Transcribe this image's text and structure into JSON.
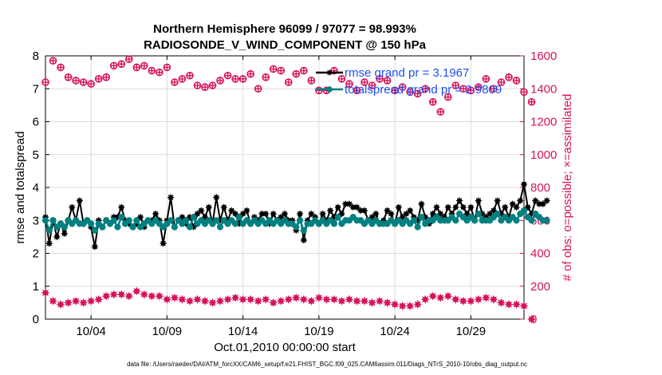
{
  "chart_data": {
    "type": "line",
    "title": "Northern Hemisphere 96099 / 97077 = 98.993%",
    "subtitle": "RADIOSONDE_V_WIND_COMPONENT @ 150 hPa",
    "xlabel": "Oct.01,2010 00:00:00 start",
    "ylabel_left": "rmse and totalspread",
    "ylabel_right": "# of obs: o=possible; ×=assimilated",
    "footnote": "data file: /Users/raeder/DAI/ATM_forcXX/CAM6_setup/f.e21.FHIST_BGC.f09_025.CAM6assim.011/Diags_NTrS_2010-10/obs_diag_output.nc",
    "xlim": [
      1,
      32.5
    ],
    "ylim_left": [
      0,
      8
    ],
    "ylim_right": [
      0,
      1600
    ],
    "x_tick_values": [
      4,
      9,
      14,
      19,
      24,
      29
    ],
    "x_tick_labels": [
      "10/04",
      "10/09",
      "10/14",
      "10/19",
      "10/24",
      "10/29"
    ],
    "y_left_ticks": [
      "0",
      "1",
      "2",
      "3",
      "4",
      "5",
      "6",
      "7",
      "8"
    ],
    "y_right_ticks": [
      "0",
      "200",
      "400",
      "600",
      "800",
      "1000",
      "1200",
      "1400",
      "1600"
    ],
    "grid": true,
    "legend": [
      {
        "label": "rmse grand pr = 3.1967",
        "color": "#000000"
      },
      {
        "label": "totalspread grand pr = 2.9809",
        "color": "#008080"
      }
    ],
    "x_start": 1,
    "x_step": 0.25,
    "series": [
      {
        "name": "rmse",
        "axis": "left",
        "color": "#000000",
        "values": [
          3.1,
          2.3,
          3.0,
          2.5,
          2.9,
          2.6,
          3.0,
          3.4,
          3.0,
          3.6,
          2.9,
          3.0,
          2.8,
          2.2,
          3.0,
          2.8,
          3.0,
          2.9,
          3.1,
          3.1,
          3.4,
          3.0,
          2.9,
          2.8,
          2.9,
          3.1,
          2.8,
          3.0,
          3.0,
          3.2,
          3.0,
          2.3,
          3.0,
          3.7,
          2.8,
          3.0,
          3.1,
          2.9,
          3.1,
          2.8,
          3.2,
          3.3,
          3.1,
          3.4,
          2.9,
          3.7,
          3.0,
          3.4,
          3.0,
          3.3,
          3.2,
          2.9,
          3.2,
          3.3,
          2.9,
          3.1,
          3.0,
          3.2,
          3.2,
          2.9,
          3.2,
          3.0,
          3.1,
          3.2,
          3.0,
          3.0,
          2.7,
          3.2,
          2.4,
          3.0,
          3.2,
          3.1,
          2.9,
          3.2,
          3.0,
          3.3,
          3.1,
          3.4,
          3.2,
          3.5,
          3.5,
          3.4,
          3.4,
          3.3,
          3.3,
          3.0,
          3.1,
          3.2,
          2.9,
          3.0,
          3.3,
          3.2,
          2.9,
          3.4,
          3.1,
          3.2,
          3.3,
          3.1,
          3.0,
          3.5,
          3.1,
          2.9,
          3.2,
          3.4,
          3.2,
          3.1,
          3.4,
          3.2,
          3.4,
          3.6,
          3.4,
          3.2,
          3.4,
          3.0,
          3.6,
          3.2,
          3.1,
          3.2,
          3.3,
          3.6,
          3.2,
          3.4,
          3.1,
          3.5,
          3.4,
          3.6,
          4.1,
          3.4,
          3.2,
          3.6,
          3.5,
          3.5,
          3.6
        ]
      },
      {
        "name": "totalspread",
        "axis": "left",
        "color": "#008080",
        "values": [
          3.0,
          2.7,
          3.0,
          2.8,
          2.9,
          2.8,
          3.0,
          2.9,
          3.0,
          2.9,
          2.9,
          3.0,
          2.9,
          2.7,
          2.9,
          2.8,
          3.0,
          2.9,
          3.0,
          2.8,
          3.1,
          2.9,
          3.0,
          2.8,
          3.0,
          2.8,
          2.9,
          3.0,
          2.9,
          3.0,
          2.9,
          2.8,
          2.9,
          3.0,
          2.8,
          3.0,
          2.9,
          3.0,
          2.8,
          3.1,
          2.9,
          3.0,
          2.9,
          3.0,
          2.9,
          3.0,
          2.8,
          3.0,
          2.9,
          3.0,
          2.9,
          3.1,
          2.9,
          3.0,
          2.9,
          3.0,
          2.9,
          3.0,
          2.9,
          3.0,
          2.9,
          3.0,
          2.9,
          3.0,
          2.9,
          2.9,
          2.8,
          3.0,
          2.7,
          2.9,
          2.9,
          3.0,
          2.9,
          3.0,
          2.9,
          3.0,
          2.9,
          3.1,
          2.9,
          3.0,
          3.0,
          3.1,
          3.0,
          3.0,
          2.9,
          3.0,
          2.9,
          3.0,
          2.9,
          2.9,
          2.9,
          3.0,
          2.9,
          3.0,
          2.9,
          3.0,
          2.9,
          3.0,
          2.8,
          3.1,
          2.9,
          3.0,
          3.0,
          3.1,
          3.0,
          3.0,
          3.0,
          3.1,
          3.0,
          3.2,
          3.1,
          3.0,
          3.1,
          3.0,
          3.2,
          3.0,
          3.0,
          3.0,
          3.1,
          3.2,
          3.0,
          3.1,
          3.0,
          3.1,
          3.0,
          3.2,
          3.3,
          3.1,
          3.0,
          3.2,
          3.1,
          3.0,
          3.0
        ]
      },
      {
        "name": "possible",
        "axis": "right",
        "marker": "o",
        "color": "#d6125a",
        "x_start": 1,
        "x_step": 0.5,
        "values": [
          1440,
          1570,
          1530,
          1470,
          1450,
          1440,
          1430,
          1460,
          1470,
          1540,
          1550,
          1580,
          1530,
          1540,
          1510,
          1500,
          1530,
          1440,
          1460,
          1480,
          1420,
          1410,
          1420,
          1450,
          1480,
          1460,
          1460,
          1490,
          1400,
          1470,
          1520,
          1510,
          1440,
          1490,
          1510,
          1450,
          1390,
          1390,
          1510,
          1460,
          1430,
          1390,
          1440,
          1420,
          1460,
          1450,
          1390,
          1410,
          1380,
          1370,
          1400,
          1320,
          1260,
          1350,
          1420,
          1400,
          1390,
          1410,
          1460,
          1400,
          1440,
          1470,
          1450,
          1380,
          1320
        ]
      },
      {
        "name": "assimilated",
        "axis": "right",
        "marker": "x",
        "color": "#d6125a",
        "x_start": 1,
        "x_step": 0.5,
        "values": [
          160,
          110,
          90,
          100,
          110,
          100,
          110,
          120,
          140,
          150,
          150,
          140,
          170,
          150,
          140,
          140,
          120,
          130,
          120,
          110,
          120,
          110,
          100,
          110,
          120,
          130,
          120,
          120,
          110,
          120,
          100,
          110,
          120,
          130,
          120,
          110,
          130,
          120,
          120,
          110,
          120,
          110,
          110,
          100,
          110,
          100,
          90,
          80,
          80,
          90,
          120,
          140,
          130,
          140,
          120,
          110,
          110,
          120,
          130,
          120,
          100,
          90,
          90,
          80,
          0
        ]
      }
    ]
  }
}
